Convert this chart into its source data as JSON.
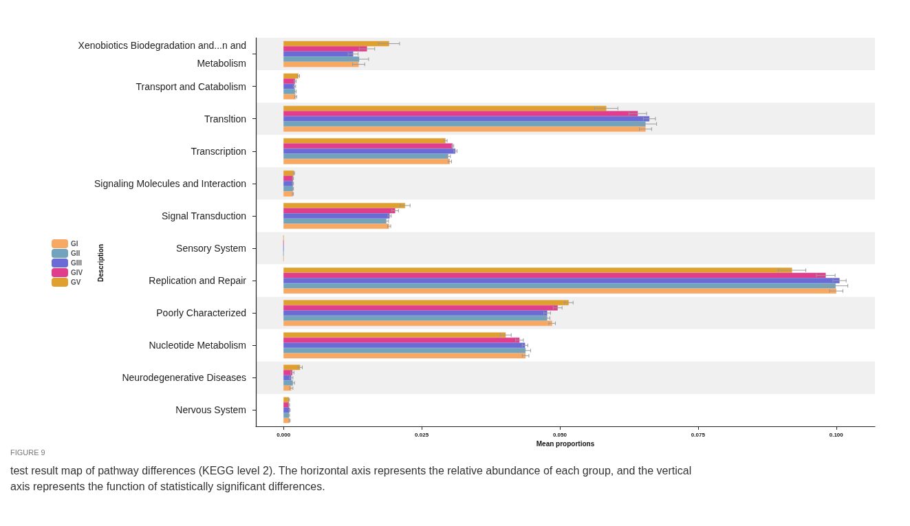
{
  "chart_data": {
    "type": "bar",
    "orientation": "horizontal",
    "xlabel": "Mean proportions",
    "ylabel": "Description",
    "categories": [
      "Xenobiotics Biodegradation and...n and\nMetabolism",
      "Transport and Catabolism",
      "Transltion",
      "Transcription",
      "Signaling Molecules and Interaction",
      "Signal Transduction",
      "Sensory System",
      "Replication and Repair",
      "Poorly Characterized",
      "Nucleotide Metabolism",
      "Neurodegenerative Diseases",
      "Nervous System"
    ],
    "series": [
      {
        "name": "GI",
        "color": "#f7a863",
        "values": [
          0.0136,
          0.0022,
          0.0655,
          0.0301,
          0.0017,
          0.0191,
          0,
          0.1,
          0.0486,
          0.0438,
          0.0014,
          0.0011
        ],
        "errors": [
          0.0011,
          0.0002,
          0.0011,
          0.0003,
          0.0001,
          0.0003,
          null,
          0.0012,
          0.0006,
          0.0006,
          0.0003,
          0.0001
        ]
      },
      {
        "name": "GII",
        "color": "#72a3bd",
        "values": [
          0.0137,
          0.0021,
          0.0655,
          0.0298,
          0.0017,
          0.0186,
          0,
          0.0999,
          0.0477,
          0.0438,
          0.0017,
          0.001
        ],
        "errors": [
          0.0017,
          0.0002,
          0.002,
          0.0004,
          0.0001,
          0.0004,
          null,
          0.0022,
          0.0005,
          0.0009,
          0.0003,
          0.0001
        ]
      },
      {
        "name": "GIII",
        "color": "#6b6bd6",
        "values": [
          0.0126,
          0.002,
          0.0662,
          0.0311,
          0.0017,
          0.0192,
          0,
          0.1006,
          0.0477,
          0.0437,
          0.0014,
          0.0011
        ],
        "errors": [
          0.0009,
          0.0002,
          0.0011,
          0.0003,
          0.0001,
          0.0003,
          null,
          0.0012,
          0.0006,
          0.0005,
          0.0003,
          0.0001
        ]
      },
      {
        "name": "GIV",
        "color": "#e03e8c",
        "values": [
          0.0151,
          0.0021,
          0.0641,
          0.0306,
          0.0017,
          0.0202,
          0,
          0.0981,
          0.0496,
          0.0427,
          0.0016,
          0.001
        ],
        "errors": [
          0.0014,
          0.0002,
          0.0016,
          0.0002,
          0.0001,
          0.0006,
          null,
          0.0017,
          0.0008,
          0.0007,
          0.0003,
          0.0001
        ]
      },
      {
        "name": "GV",
        "color": "#e0a030",
        "values": [
          0.0191,
          0.0027,
          0.0584,
          0.0293,
          0.0019,
          0.022,
          0,
          0.092,
          0.0516,
          0.0402,
          0.003,
          0.001
        ],
        "errors": [
          0.0019,
          0.0002,
          0.0021,
          0.0003,
          0.0001,
          0.0009,
          null,
          0.0025,
          0.0008,
          0.001,
          0.0004,
          0.0001
        ]
      }
    ],
    "xlim": [
      -0.005,
      0.107
    ],
    "xticks": [
      {
        "value": 0,
        "label": "0.000"
      },
      {
        "value": 0.025,
        "label": "0.025"
      },
      {
        "value": 0.05,
        "label": "0.050"
      },
      {
        "value": 0.075,
        "label": "0.075"
      },
      {
        "value": 0.1,
        "label": "0.100"
      }
    ],
    "legend": "left",
    "grid": false,
    "annotations": [
      "FIGURE 9",
      "test result map of pathway differences (KEGG level 2). The horizontal axis represents the relative abundance of each group, and the vertical\naxis represents the function of statistically significant differences."
    ]
  }
}
